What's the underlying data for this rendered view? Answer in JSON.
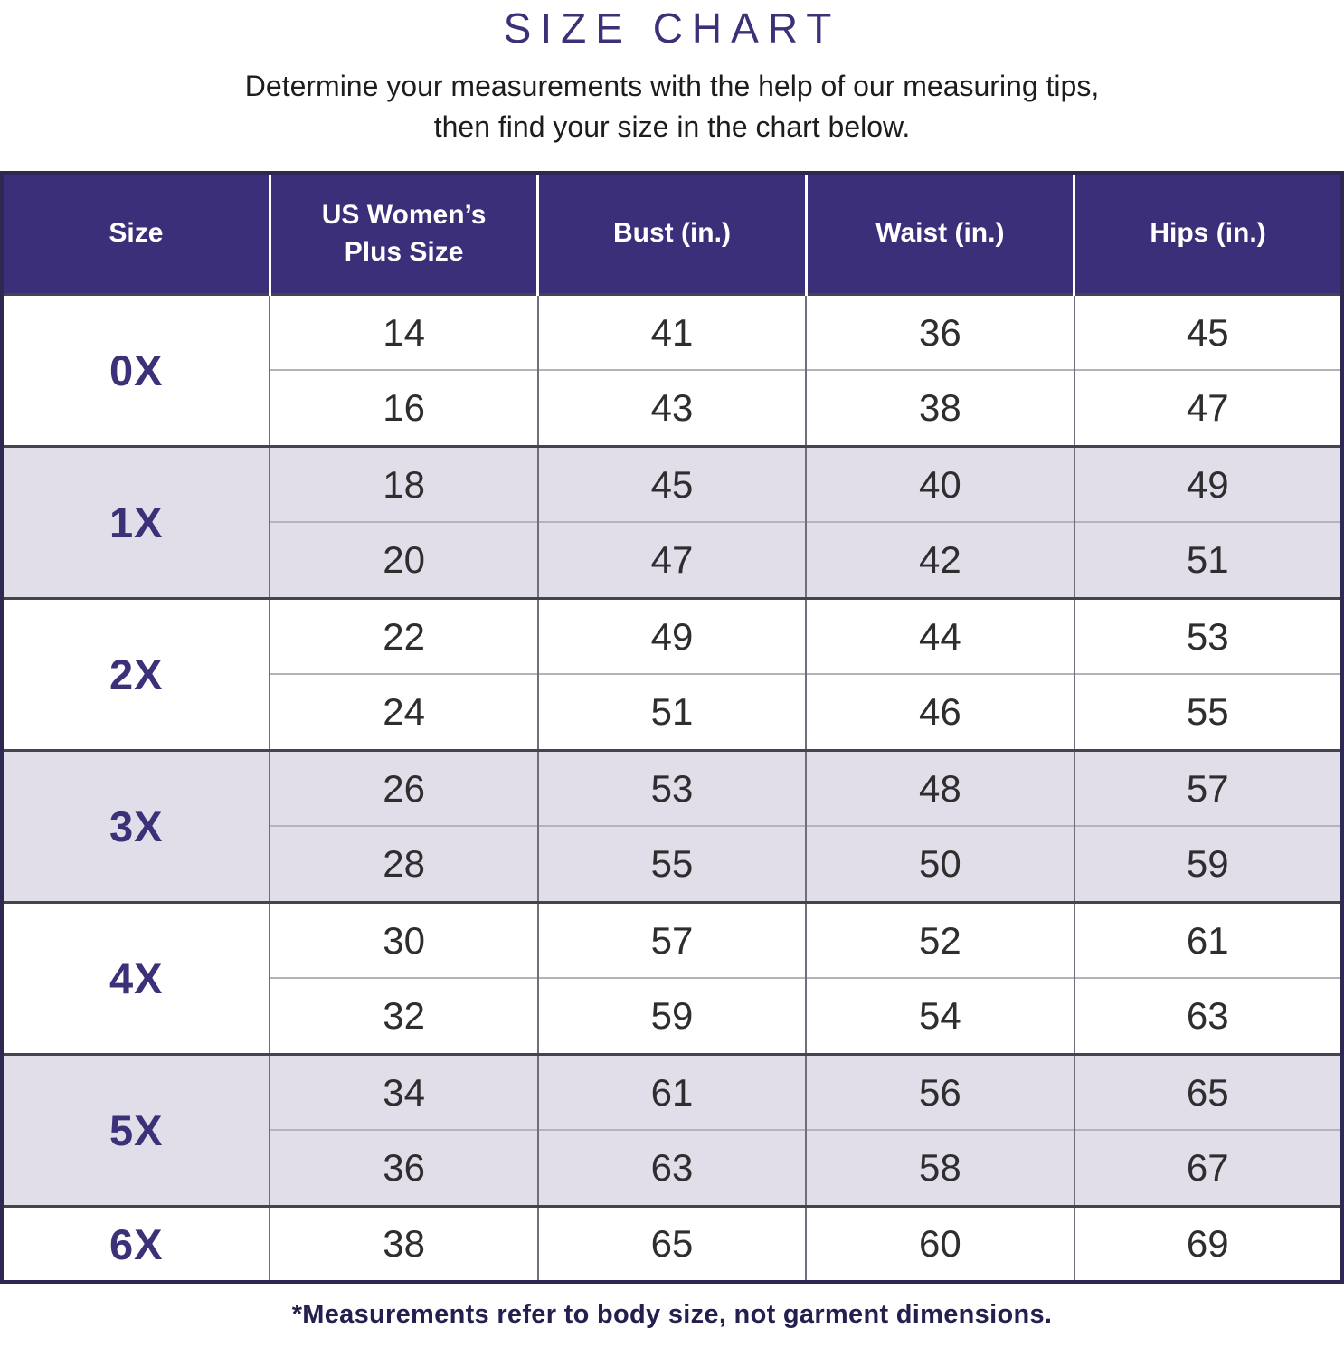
{
  "page": {
    "title": "SIZE CHART",
    "subtitle_line1": "Determine your measurements with the help of our measuring tips,",
    "subtitle_line2": "then find your size in the chart below.",
    "footnote": "*Measurements refer to body size, not garment dimensions."
  },
  "colors": {
    "header_bg": "#3b2f7a",
    "header_text": "#ffffff",
    "accent_purple": "#3b3178",
    "row_bg": "#ffffff",
    "row_alt_bg": "#e1dde9",
    "data_text": "#2e2e2e",
    "footnote_color": "#232050",
    "border_dark": "#2d2950",
    "divider_gray": "#716d7a",
    "subrow_divider": "#b5b2bc",
    "group_divider": "#46424f"
  },
  "chart_data": {
    "type": "table",
    "title": "SIZE CHART",
    "units": "inches",
    "columns": [
      "Size",
      "US Women’s Plus Size",
      "Bust (in.)",
      "Waist (in.)",
      "Hips (in.)"
    ],
    "groups": [
      {
        "size": "0X",
        "shaded": false,
        "rows": [
          [
            14,
            41,
            36,
            45
          ],
          [
            16,
            43,
            38,
            47
          ]
        ]
      },
      {
        "size": "1X",
        "shaded": true,
        "rows": [
          [
            18,
            45,
            40,
            49
          ],
          [
            20,
            47,
            42,
            51
          ]
        ]
      },
      {
        "size": "2X",
        "shaded": false,
        "rows": [
          [
            22,
            49,
            44,
            53
          ],
          [
            24,
            51,
            46,
            55
          ]
        ]
      },
      {
        "size": "3X",
        "shaded": true,
        "rows": [
          [
            26,
            53,
            48,
            57
          ],
          [
            28,
            55,
            50,
            59
          ]
        ]
      },
      {
        "size": "4X",
        "shaded": false,
        "rows": [
          [
            30,
            57,
            52,
            61
          ],
          [
            32,
            59,
            54,
            63
          ]
        ]
      },
      {
        "size": "5X",
        "shaded": true,
        "rows": [
          [
            34,
            61,
            56,
            65
          ],
          [
            36,
            63,
            58,
            67
          ]
        ]
      },
      {
        "size": "6X",
        "shaded": false,
        "rows": [
          [
            38,
            65,
            60,
            69
          ]
        ]
      }
    ],
    "footnote": "*Measurements refer to body size, not garment dimensions."
  }
}
